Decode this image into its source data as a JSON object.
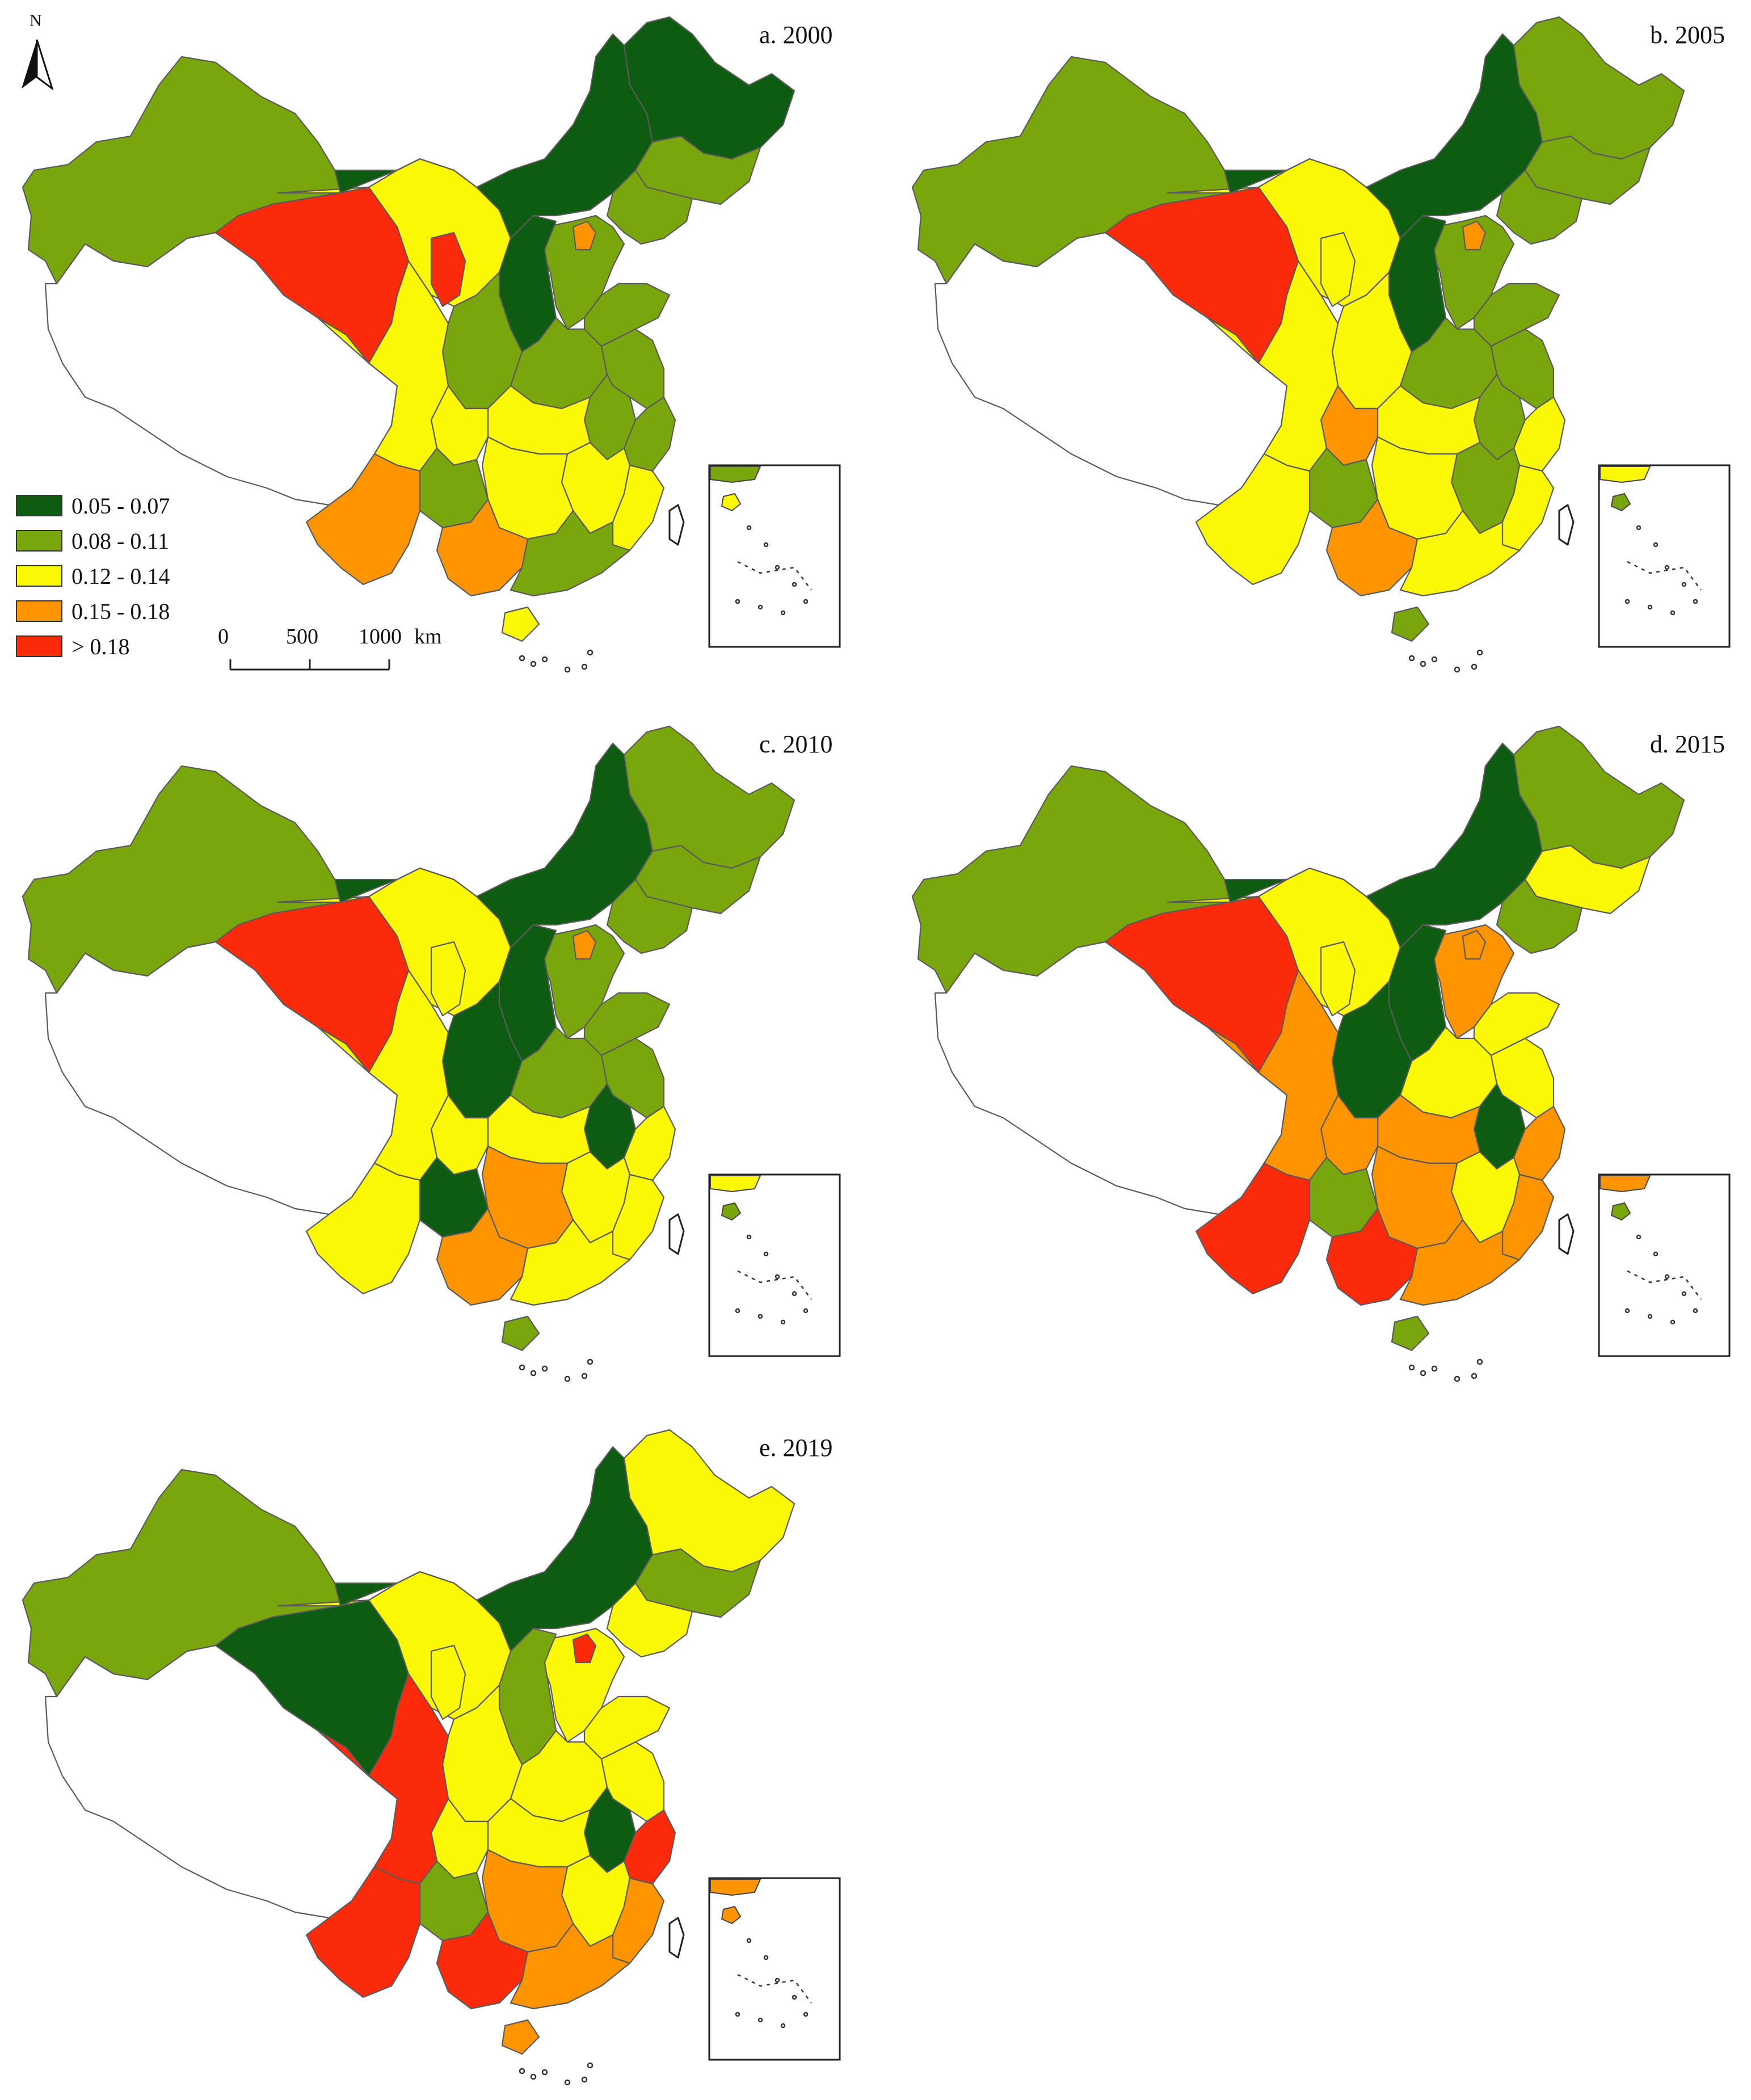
{
  "colors": {
    "c1": "#0e5c12",
    "c2": "#7aa60d",
    "c3": "#fbf806",
    "c4": "#fd9400",
    "c5": "#fb2a0a",
    "no_data": "#ffffff"
  },
  "legend": {
    "items": [
      {
        "label": "0.05 - 0.07",
        "color_key": "c1"
      },
      {
        "label": "0.08 - 0.11",
        "color_key": "c2"
      },
      {
        "label": "0.12 - 0.14",
        "color_key": "c3"
      },
      {
        "label": "0.15 - 0.18",
        "color_key": "c4"
      },
      {
        "label": "> 0.18",
        "color_key": "c5"
      }
    ]
  },
  "north_arrow": {
    "label": "N"
  },
  "scale_bar": {
    "ticks": [
      "0",
      "500",
      "1000"
    ],
    "unit": "km"
  },
  "panels": [
    {
      "label": "a. 2000",
      "classes": {
        "xinjiang": "c2",
        "tibet": "c0",
        "qinghai": "c5",
        "gansu": "c3",
        "ningxia": "c5",
        "inner_mongolia": "c1",
        "heilongjiang": "c1",
        "jilin": "c2",
        "liaoning": "c2",
        "beijing": "c4",
        "hebei": "c2",
        "shanxi": "c1",
        "shaanxi": "c2",
        "henan": "c2",
        "shandong": "c2",
        "jiangsu": "c2",
        "anhui": "c2",
        "hubei": "c3",
        "sichuan": "c3",
        "chongqing": "c3",
        "hunan": "c3",
        "jiangxi": "c3",
        "zhejiang": "c2",
        "fujian": "c3",
        "guangdong": "c2",
        "guangxi": "c4",
        "guizhou": "c2",
        "yunnan": "c4",
        "hainan": "c3"
      }
    },
    {
      "label": "b. 2005",
      "classes": {
        "xinjiang": "c2",
        "tibet": "c0",
        "qinghai": "c5",
        "gansu": "c3",
        "ningxia": "c3",
        "inner_mongolia": "c1",
        "heilongjiang": "c2",
        "jilin": "c2",
        "liaoning": "c2",
        "beijing": "c4",
        "hebei": "c2",
        "shanxi": "c1",
        "shaanxi": "c3",
        "henan": "c2",
        "shandong": "c2",
        "jiangsu": "c2",
        "anhui": "c2",
        "hubei": "c3",
        "sichuan": "c3",
        "chongqing": "c4",
        "hunan": "c3",
        "jiangxi": "c2",
        "zhejiang": "c3",
        "fujian": "c3",
        "guangdong": "c3",
        "guangxi": "c4",
        "guizhou": "c2",
        "yunnan": "c3",
        "hainan": "c2"
      }
    },
    {
      "label": "c. 2010",
      "classes": {
        "xinjiang": "c2",
        "tibet": "c0",
        "qinghai": "c5",
        "gansu": "c3",
        "ningxia": "c3",
        "inner_mongolia": "c1",
        "heilongjiang": "c2",
        "jilin": "c2",
        "liaoning": "c2",
        "beijing": "c4",
        "hebei": "c2",
        "shanxi": "c1",
        "shaanxi": "c1",
        "henan": "c2",
        "shandong": "c2",
        "jiangsu": "c2",
        "anhui": "c1",
        "hubei": "c3",
        "sichuan": "c3",
        "chongqing": "c3",
        "hunan": "c4",
        "jiangxi": "c3",
        "zhejiang": "c3",
        "fujian": "c3",
        "guangdong": "c3",
        "guangxi": "c4",
        "guizhou": "c1",
        "yunnan": "c3",
        "hainan": "c2"
      }
    },
    {
      "label": "d. 2015",
      "classes": {
        "xinjiang": "c2",
        "tibet": "c0",
        "qinghai": "c5",
        "gansu": "c3",
        "ningxia": "c3",
        "inner_mongolia": "c1",
        "heilongjiang": "c2",
        "jilin": "c3",
        "liaoning": "c2",
        "beijing": "c4",
        "hebei": "c4",
        "shanxi": "c1",
        "shaanxi": "c1",
        "henan": "c3",
        "shandong": "c3",
        "jiangsu": "c3",
        "anhui": "c1",
        "hubei": "c4",
        "sichuan": "c4",
        "chongqing": "c4",
        "hunan": "c4",
        "jiangxi": "c3",
        "zhejiang": "c4",
        "fujian": "c4",
        "guangdong": "c4",
        "guangxi": "c5",
        "guizhou": "c2",
        "yunnan": "c5",
        "hainan": "c2"
      }
    },
    {
      "label": "e. 2019",
      "classes": {
        "xinjiang": "c2",
        "tibet": "c0",
        "qinghai": "c1",
        "gansu": "c3",
        "ningxia": "c3",
        "inner_mongolia": "c1",
        "heilongjiang": "c3",
        "jilin": "c2",
        "liaoning": "c3",
        "beijing": "c5",
        "hebei": "c3",
        "shanxi": "c2",
        "shaanxi": "c3",
        "henan": "c3",
        "shandong": "c3",
        "jiangsu": "c3",
        "anhui": "c1",
        "hubei": "c3",
        "sichuan": "c5",
        "chongqing": "c3",
        "hunan": "c4",
        "jiangxi": "c3",
        "zhejiang": "c5",
        "fujian": "c4",
        "guangdong": "c4",
        "guangxi": "c5",
        "guizhou": "c2",
        "yunnan": "c5",
        "hainan": "c4"
      }
    }
  ]
}
